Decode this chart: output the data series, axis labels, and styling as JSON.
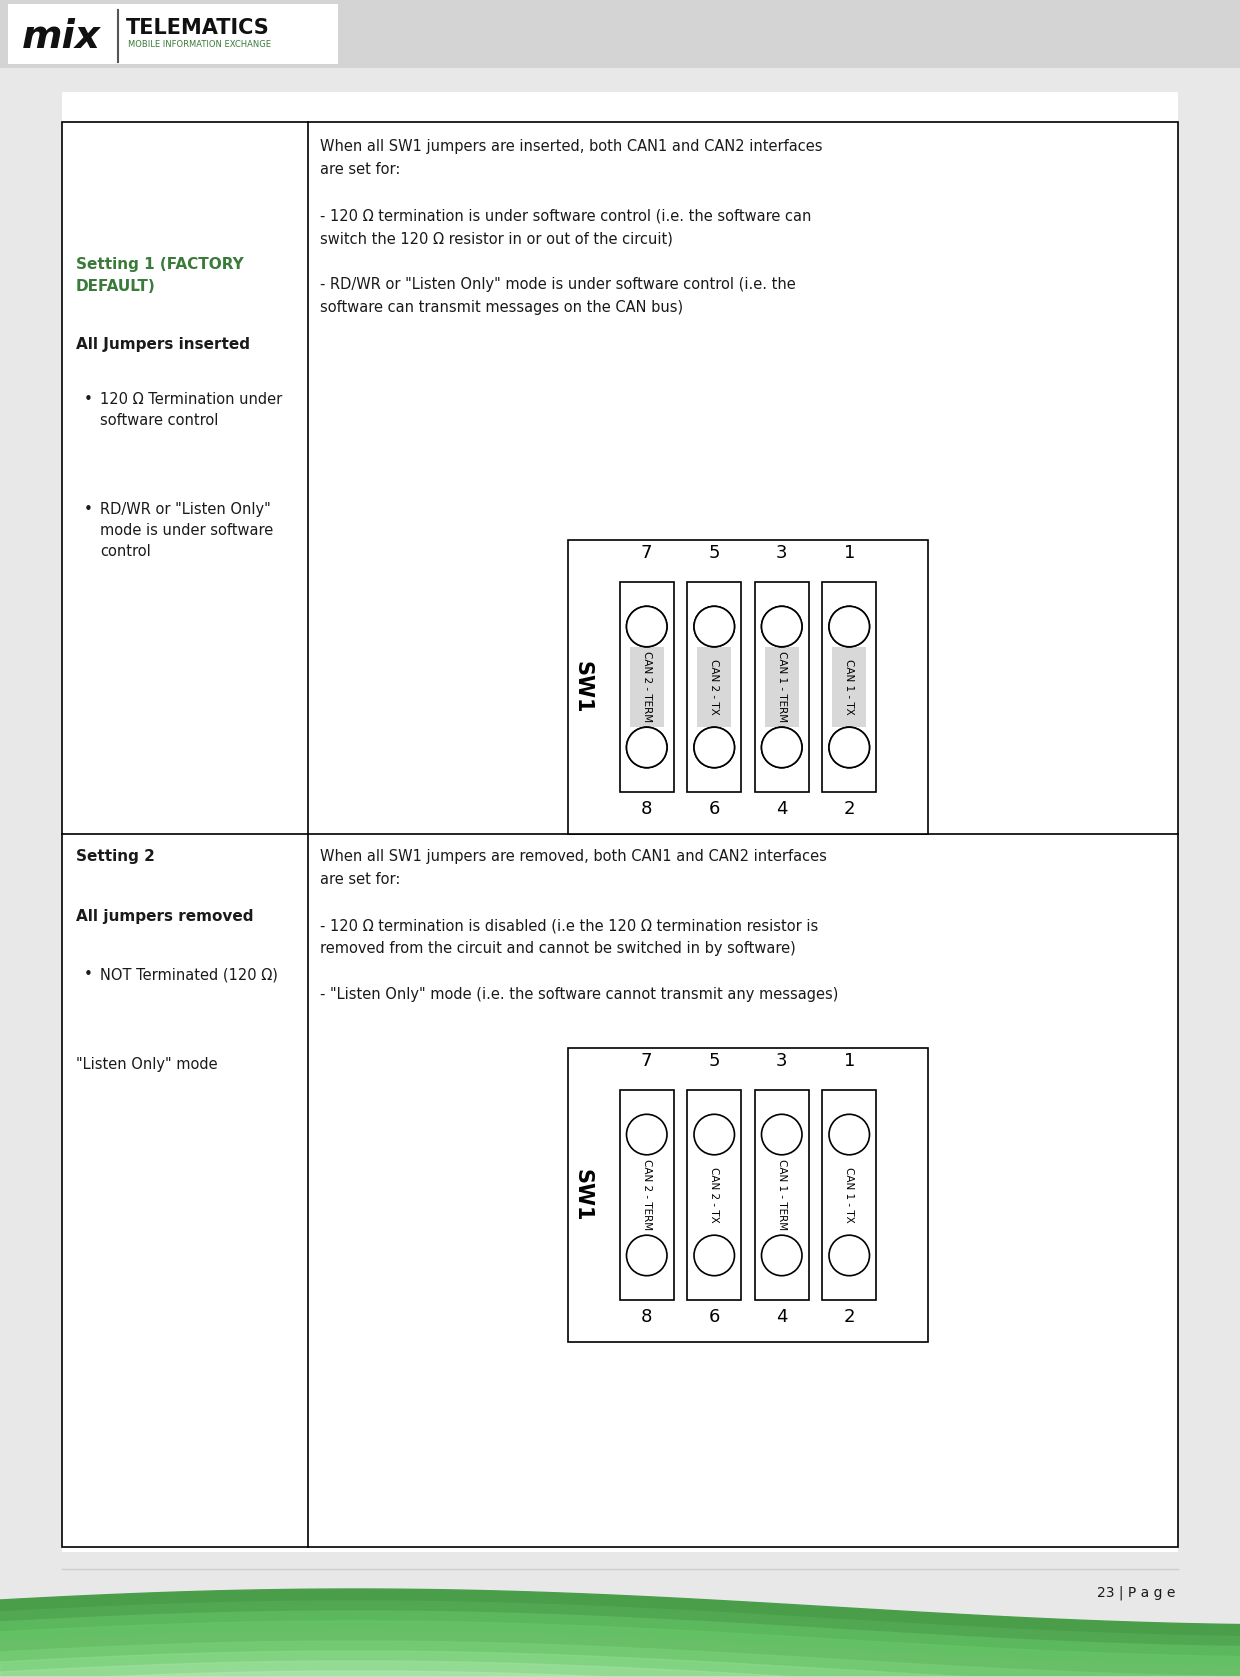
{
  "page_bg": "#e8e8e8",
  "content_bg": "#ffffff",
  "header_bg": "#d4d4d4",
  "table_border": "#000000",
  "green_color": "#3a7a3a",
  "black_color": "#1a1a1a",
  "gray_color": "#888888",
  "footer_line_color": "#cccccc",
  "page_number": "23 | P a g e",
  "setting1_title": "Setting 1 (FACTORY\nDEFAULT)",
  "setting1_bold_label": "All Jumpers inserted",
  "setting1_bullet1": "120 Ω Termination under\nsoftware control",
  "setting1_bullet2": "RD/WR or \"Listen Only\"\nmode is under software\ncontrol",
  "setting1_right_text": [
    "When all SW1 jumpers are inserted, both CAN1 and CAN2 interfaces",
    "are set for:",
    "",
    "- 120 Ω termination is under software control (i.e. the software can",
    "switch the 120 Ω resistor in or out of the circuit)",
    "",
    "- RD/WR or \"Listen Only\" mode is under software control (i.e. the",
    "software can transmit messages on the CAN bus)"
  ],
  "setting2_title": "Setting 2",
  "setting2_bold_label": "All jumpers removed",
  "setting2_bullet1": "NOT Terminated (120 Ω)",
  "setting2_bullet2": "\"Listen Only\" mode",
  "setting2_right_text": [
    "When all SW1 jumpers are removed, both CAN1 and CAN2 interfaces",
    "are set for:",
    "",
    "- 120 Ω termination is disabled (i.e the 120 Ω termination resistor is",
    "removed from the circuit and cannot be switched in by software)",
    "",
    "- \"Listen Only\" mode (i.e. the software cannot transmit any messages)"
  ],
  "sw_labels_top": [
    "7",
    "5",
    "3",
    "1"
  ],
  "sw_labels_bottom": [
    "8",
    "6",
    "4",
    "2"
  ],
  "sw_channel_labels": [
    "CAN 2 - TERM",
    "CAN 2 - TX",
    "CAN 1 - TERM",
    "CAN 1 - TX"
  ],
  "sw_main_label": "SW1",
  "logo_telematics": "TELEMATICS",
  "logo_sub": "MOBILE INFORMATION EXCHANGE",
  "logo_mix": "mix"
}
